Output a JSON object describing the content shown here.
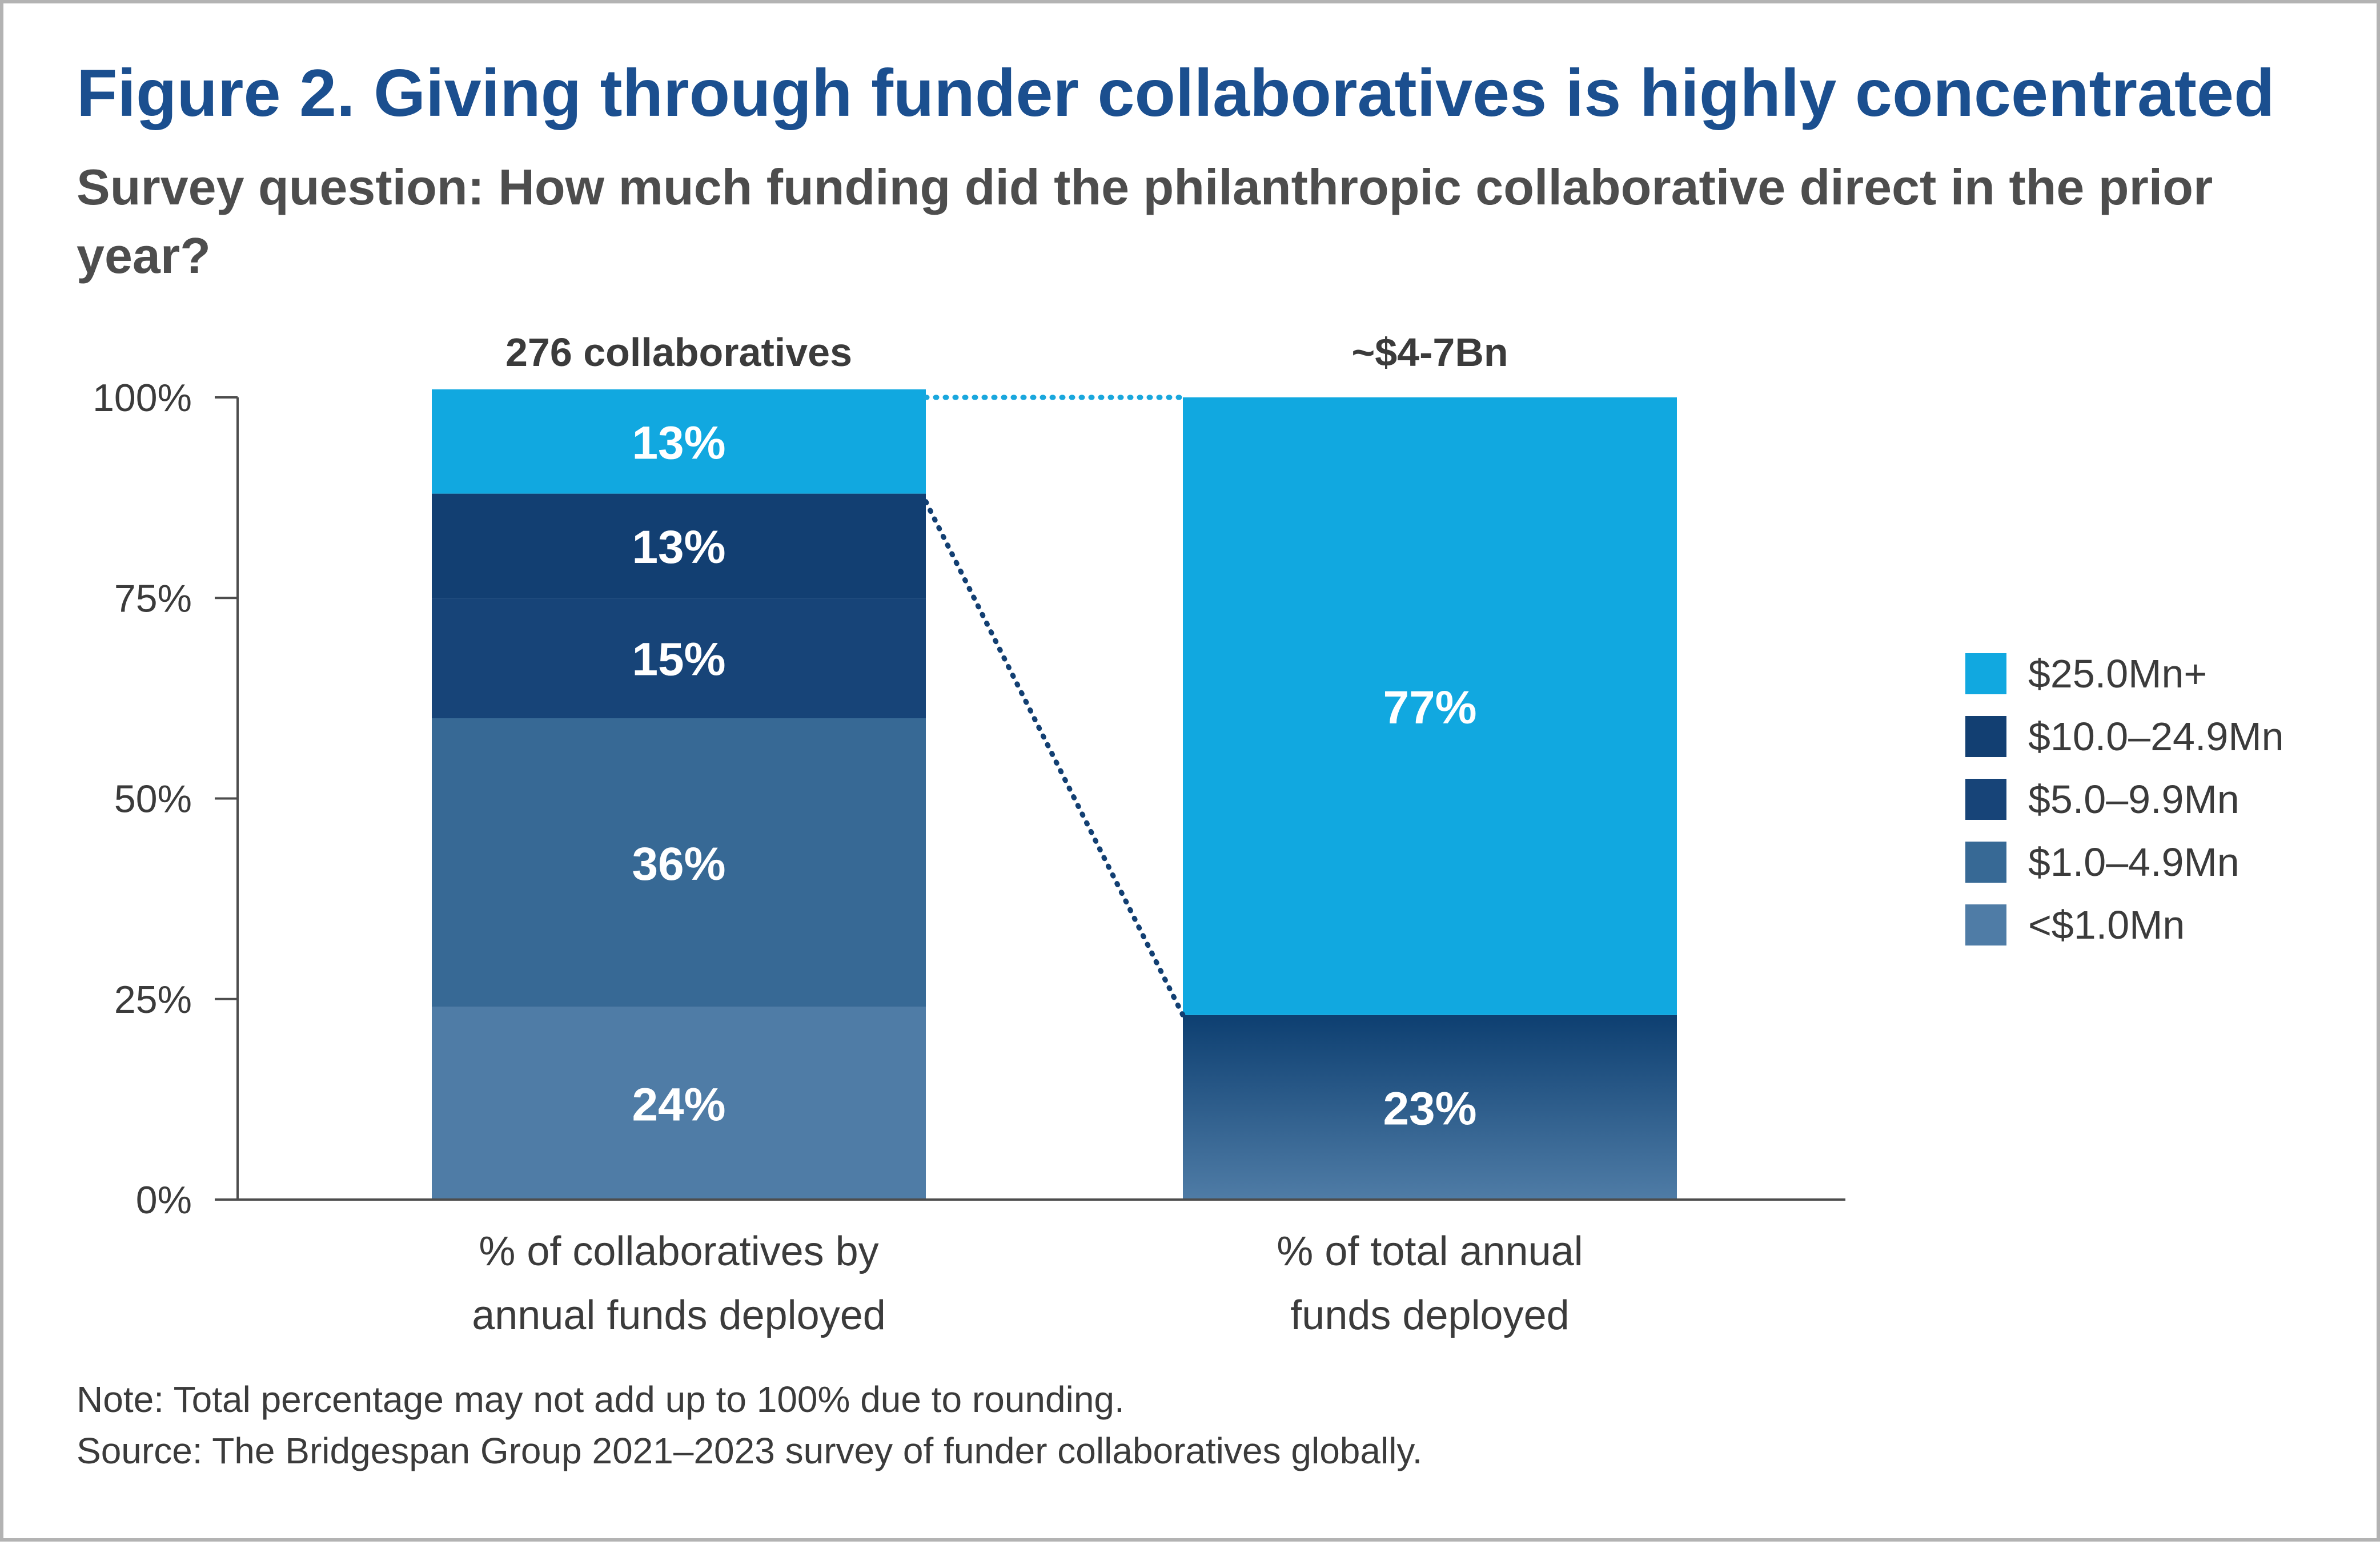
{
  "title": "Figure 2. Giving through funder collaboratives is highly concentrated",
  "subtitle": "Survey question: How much funding did the philanthropic collaborative direct in the prior year?",
  "notes": {
    "note": "Note: Total percentage may not add up to 100% due to rounding.",
    "source": "Source: The Bridgespan Group 2021–2023 survey of funder collaboratives globally."
  },
  "colors": {
    "title": "#1b4f8f",
    "subtitle": "#4d4d4d",
    "axis": "#4d4d4d",
    "connector_top": "#1aa7dd",
    "connector_mid": "#123f72"
  },
  "chart_data": {
    "type": "bar",
    "stacked": true,
    "ylim": [
      0,
      100
    ],
    "yticks": [
      0,
      25,
      50,
      75,
      100
    ],
    "ytick_labels": [
      "0%",
      "25%",
      "50%",
      "75%",
      "100%"
    ],
    "categories": [
      "% of collaboratives by annual funds deployed",
      "% of total annual funds deployed"
    ],
    "category_lines": [
      [
        "% of collaboratives by",
        "annual funds deployed"
      ],
      [
        "% of total annual",
        "funds deployed"
      ]
    ],
    "bar_headers": [
      "276 collaboratives",
      "~$4-7Bn"
    ],
    "legend": [
      {
        "label": "$25.0Mn+",
        "color": "#11a8e0"
      },
      {
        "label": "$10.0–24.9Mn",
        "color": "#123f72"
      },
      {
        "label": "$5.0–9.9Mn",
        "color": "#174478"
      },
      {
        "label": "$1.0–4.9Mn",
        "color": "#376995"
      },
      {
        "label": "<$1.0Mn",
        "color": "#4f7ca6"
      }
    ],
    "legend_position": "right",
    "bars": [
      {
        "segments": [
          {
            "value": 24,
            "label": "24%",
            "color": "#4f7ca6"
          },
          {
            "value": 36,
            "label": "36%",
            "color": "#376995"
          },
          {
            "value": 15,
            "label": "15%",
            "color": "#174478"
          },
          {
            "value": 13,
            "label": "13%",
            "color": "#123f72"
          },
          {
            "value": 13,
            "label": "13%",
            "color": "#11a8e0"
          }
        ]
      },
      {
        "segments": [
          {
            "value": 23,
            "label": "23%",
            "gradient": [
              "#0d3f71",
              "#4f7ca6"
            ]
          },
          {
            "value": 77,
            "label": "77%",
            "color": "#11a8e0"
          }
        ]
      }
    ],
    "connectors": [
      {
        "from_bar": 0,
        "from_value": 100,
        "to_bar": 1,
        "to_value": 100,
        "color": "#1aa7dd"
      },
      {
        "from_bar": 0,
        "from_value": 87,
        "to_bar": 1,
        "to_value": 23,
        "color": "#123f72"
      }
    ]
  }
}
